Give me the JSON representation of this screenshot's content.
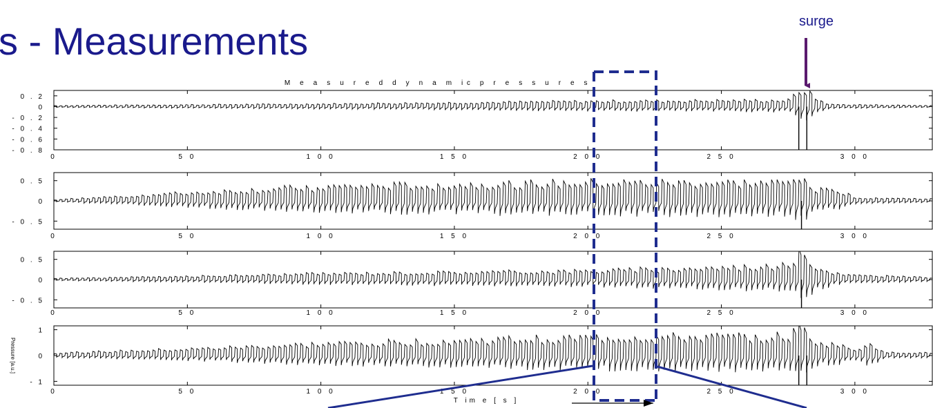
{
  "slide": {
    "title": "s - Measurements",
    "surge_label": "surge",
    "colors": {
      "title": "#1a1a8c",
      "arrow": "#5a1a6e",
      "overlay": "#1f2d8f",
      "trace": "#000000"
    }
  },
  "chart_data": [
    {
      "type": "line",
      "title": "M e a s u r e d   d y n a m  ic   p r e s s u r e s",
      "xlabel": "",
      "ylabel": "",
      "xlim": [
        0,
        329
      ],
      "ylim": [
        -0.8,
        0.3
      ],
      "xticks": [
        0,
        50,
        100,
        150,
        200,
        250,
        300
      ],
      "xtick_labels": [
        "0",
        "5 0",
        "1 0 0",
        "1 5 0",
        "2 0 0",
        "2 5 0",
        "3 0 0"
      ],
      "yticks": [
        0.2,
        0,
        -0.2,
        -0.4,
        -0.6,
        -0.8
      ],
      "ytick_labels": [
        "0 . 2",
        "0",
        "- 0 . 2",
        "- 0 . 4",
        "- 0 . 6",
        "- 0 . 8"
      ],
      "series": [
        {
          "envelope": [
            [
              0,
              0.02
            ],
            [
              100,
              0.05
            ],
            [
              200,
              0.1
            ],
            [
              275,
              0.12
            ],
            [
              280,
              0.35
            ],
            [
              285,
              0.15
            ],
            [
              290,
              0.04
            ],
            [
              329,
              0.02
            ]
          ],
          "spikes": [
            [
              279,
              -0.8
            ],
            [
              282,
              -0.8
            ]
          ]
        }
      ]
    },
    {
      "type": "line",
      "title": "",
      "xlabel": "",
      "ylabel": "",
      "xlim": [
        0,
        329
      ],
      "ylim": [
        -0.7,
        0.7
      ],
      "xticks": [
        0,
        50,
        100,
        150,
        200,
        250,
        300
      ],
      "xtick_labels": [
        "0",
        "5 0",
        "1 0 0",
        "1 5 0",
        "2 0 0",
        "2 5 0",
        "3 0 0"
      ],
      "yticks": [
        0.5,
        0,
        -0.5
      ],
      "ytick_labels": [
        "0 . 5",
        "0",
        "- 0 . 5"
      ],
      "series": [
        {
          "envelope": [
            [
              0,
              0.03
            ],
            [
              50,
              0.2
            ],
            [
              100,
              0.35
            ],
            [
              200,
              0.45
            ],
            [
              275,
              0.45
            ],
            [
              280,
              0.7
            ],
            [
              285,
              0.25
            ],
            [
              292,
              0.3
            ],
            [
              300,
              0.08
            ],
            [
              329,
              0.05
            ]
          ],
          "spikes": [
            [
              280,
              -0.7
            ]
          ]
        }
      ]
    },
    {
      "type": "line",
      "title": "",
      "xlabel": "",
      "ylabel": "",
      "xlim": [
        0,
        329
      ],
      "ylim": [
        -0.7,
        0.7
      ],
      "xticks": [
        0,
        50,
        100,
        150,
        200,
        250,
        300
      ],
      "xtick_labels": [
        "0",
        "5 0",
        "1 0 0",
        "1 5 0",
        "2 0 0",
        "2 5 0",
        "3 0 0"
      ],
      "yticks": [
        0.5,
        0,
        -0.5
      ],
      "ytick_labels": [
        "0 . 5",
        "0",
        "- 0 . 5"
      ],
      "series": [
        {
          "envelope": [
            [
              0,
              0.03
            ],
            [
              50,
              0.08
            ],
            [
              100,
              0.15
            ],
            [
              200,
              0.22
            ],
            [
              275,
              0.35
            ],
            [
              280,
              0.7
            ],
            [
              285,
              0.3
            ],
            [
              295,
              0.12
            ],
            [
              329,
              0.05
            ]
          ],
          "spikes": [
            [
              280,
              -0.7
            ]
          ]
        }
      ]
    },
    {
      "type": "line",
      "title": "",
      "xlabel": "T im  e   [ s ]",
      "ylabel": "Pressure [a.u.]",
      "xlim": [
        0,
        329
      ],
      "ylim": [
        -1.15,
        1.15
      ],
      "xticks": [
        0,
        50,
        100,
        150,
        200,
        250,
        300
      ],
      "xtick_labels": [
        "0",
        "5 0",
        "1 0 0",
        "1 5 0",
        "2 0 0",
        "2 5 0",
        "3 0 0"
      ],
      "yticks": [
        1,
        0,
        -1
      ],
      "ytick_labels": [
        "1",
        "0",
        "- 1"
      ],
      "series": [
        {
          "envelope": [
            [
              0,
              0.1
            ],
            [
              50,
              0.25
            ],
            [
              100,
              0.45
            ],
            [
              200,
              0.7
            ],
            [
              275,
              0.75
            ],
            [
              280,
              1.15
            ],
            [
              286,
              0.4
            ],
            [
              290,
              0.5
            ],
            [
              300,
              0.2
            ],
            [
              305,
              0.55
            ],
            [
              310,
              0.12
            ],
            [
              329,
              0.1
            ]
          ],
          "spikes": [
            [
              279,
              -1.15
            ],
            [
              282,
              -1.15
            ]
          ]
        }
      ]
    }
  ]
}
